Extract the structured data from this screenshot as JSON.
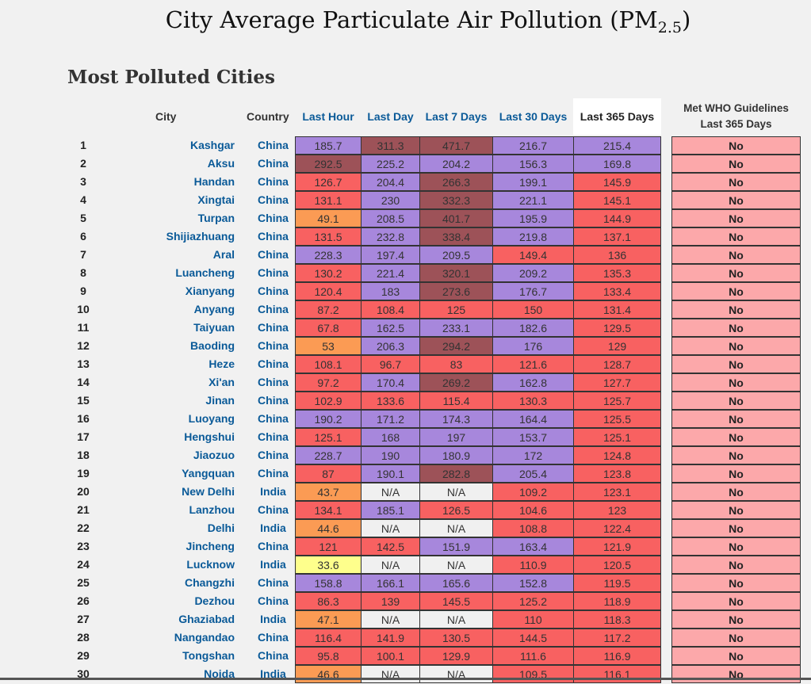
{
  "page": {
    "title": "City Average Particulate Air Pollution (PM",
    "title_sub": "2.5",
    "title_end": ")",
    "section_title": "Most Polluted Cities"
  },
  "headers": {
    "city": "City",
    "country": "Country",
    "last_hour": "Last Hour",
    "last_day": "Last Day",
    "last_7_days": "Last 7 Days",
    "last_30_days": "Last 30 Days",
    "last_365_days": "Last 365 Days",
    "who_line1": "Met WHO Guidelines",
    "who_line2": "Last 365 Days"
  },
  "colors": {
    "orange": "#fb9b54",
    "yellow": "#feff8c",
    "red": "#f86161",
    "purple": "#a787dc",
    "maroon": "#9d5258",
    "na": "#f0f0f0",
    "who_no": "#fca8aa",
    "link": "#0a5a98"
  },
  "rows": [
    {
      "rank": "1",
      "city": "Kashgar",
      "country": "China",
      "values": [
        "185.7",
        "311.3",
        "471.7",
        "216.7",
        "215.4"
      ],
      "met": "No"
    },
    {
      "rank": "2",
      "city": "Aksu",
      "country": "China",
      "values": [
        "292.5",
        "225.2",
        "204.2",
        "156.3",
        "169.8"
      ],
      "met": "No"
    },
    {
      "rank": "3",
      "city": "Handan",
      "country": "China",
      "values": [
        "126.7",
        "204.4",
        "266.3",
        "199.1",
        "145.9"
      ],
      "met": "No"
    },
    {
      "rank": "4",
      "city": "Xingtai",
      "country": "China",
      "values": [
        "131.1",
        "230",
        "332.3",
        "221.1",
        "145.1"
      ],
      "met": "No"
    },
    {
      "rank": "5",
      "city": "Turpan",
      "country": "China",
      "values": [
        "49.1",
        "208.5",
        "401.7",
        "195.9",
        "144.9"
      ],
      "met": "No"
    },
    {
      "rank": "6",
      "city": "Shijiazhuang",
      "country": "China",
      "values": [
        "131.5",
        "232.8",
        "338.4",
        "219.8",
        "137.1"
      ],
      "met": "No"
    },
    {
      "rank": "7",
      "city": "Aral",
      "country": "China",
      "values": [
        "228.3",
        "197.4",
        "209.5",
        "149.4",
        "136"
      ],
      "met": "No"
    },
    {
      "rank": "8",
      "city": "Luancheng",
      "country": "China",
      "values": [
        "130.2",
        "221.4",
        "320.1",
        "209.2",
        "135.3"
      ],
      "met": "No"
    },
    {
      "rank": "9",
      "city": "Xianyang",
      "country": "China",
      "values": [
        "120.4",
        "183",
        "273.6",
        "176.7",
        "133.4"
      ],
      "met": "No"
    },
    {
      "rank": "10",
      "city": "Anyang",
      "country": "China",
      "values": [
        "87.2",
        "108.4",
        "125",
        "150",
        "131.4"
      ],
      "met": "No"
    },
    {
      "rank": "11",
      "city": "Taiyuan",
      "country": "China",
      "values": [
        "67.8",
        "162.5",
        "233.1",
        "182.6",
        "129.5"
      ],
      "met": "No"
    },
    {
      "rank": "12",
      "city": "Baoding",
      "country": "China",
      "values": [
        "53",
        "206.3",
        "294.2",
        "176",
        "129"
      ],
      "met": "No"
    },
    {
      "rank": "13",
      "city": "Heze",
      "country": "China",
      "values": [
        "108.1",
        "96.7",
        "83",
        "121.6",
        "128.7"
      ],
      "met": "No"
    },
    {
      "rank": "14",
      "city": "Xi'an",
      "country": "China",
      "values": [
        "97.2",
        "170.4",
        "269.2",
        "162.8",
        "127.7"
      ],
      "met": "No"
    },
    {
      "rank": "15",
      "city": "Jinan",
      "country": "China",
      "values": [
        "102.9",
        "133.6",
        "115.4",
        "130.3",
        "125.7"
      ],
      "met": "No"
    },
    {
      "rank": "16",
      "city": "Luoyang",
      "country": "China",
      "values": [
        "190.2",
        "171.2",
        "174.3",
        "164.4",
        "125.5"
      ],
      "met": "No"
    },
    {
      "rank": "17",
      "city": "Hengshui",
      "country": "China",
      "values": [
        "125.1",
        "168",
        "197",
        "153.7",
        "125.1"
      ],
      "met": "No"
    },
    {
      "rank": "18",
      "city": "Jiaozuo",
      "country": "China",
      "values": [
        "228.7",
        "190",
        "180.9",
        "172",
        "124.8"
      ],
      "met": "No"
    },
    {
      "rank": "19",
      "city": "Yangquan",
      "country": "China",
      "values": [
        "87",
        "190.1",
        "282.8",
        "205.4",
        "123.8"
      ],
      "met": "No"
    },
    {
      "rank": "20",
      "city": "New Delhi",
      "country": "India",
      "values": [
        "43.7",
        "N/A",
        "N/A",
        "109.2",
        "123.1"
      ],
      "met": "No"
    },
    {
      "rank": "21",
      "city": "Lanzhou",
      "country": "China",
      "values": [
        "134.1",
        "185.1",
        "126.5",
        "104.6",
        "123"
      ],
      "met": "No"
    },
    {
      "rank": "22",
      "city": "Delhi",
      "country": "India",
      "values": [
        "44.6",
        "N/A",
        "N/A",
        "108.8",
        "122.4"
      ],
      "met": "No"
    },
    {
      "rank": "23",
      "city": "Jincheng",
      "country": "China",
      "values": [
        "121",
        "142.5",
        "151.9",
        "163.4",
        "121.9"
      ],
      "met": "No"
    },
    {
      "rank": "24",
      "city": "Lucknow",
      "country": "India",
      "values": [
        "33.6",
        "N/A",
        "N/A",
        "110.9",
        "120.5"
      ],
      "met": "No"
    },
    {
      "rank": "25",
      "city": "Changzhi",
      "country": "China",
      "values": [
        "158.8",
        "166.1",
        "165.6",
        "152.8",
        "119.5"
      ],
      "met": "No"
    },
    {
      "rank": "26",
      "city": "Dezhou",
      "country": "China",
      "values": [
        "86.3",
        "139",
        "145.5",
        "125.2",
        "118.9"
      ],
      "met": "No"
    },
    {
      "rank": "27",
      "city": "Ghaziabad",
      "country": "India",
      "values": [
        "47.1",
        "N/A",
        "N/A",
        "110",
        "118.3"
      ],
      "met": "No"
    },
    {
      "rank": "28",
      "city": "Nangandao",
      "country": "China",
      "values": [
        "116.4",
        "141.9",
        "130.5",
        "144.5",
        "117.2"
      ],
      "met": "No"
    },
    {
      "rank": "29",
      "city": "Tongshan",
      "country": "China",
      "values": [
        "95.8",
        "100.1",
        "129.9",
        "111.6",
        "116.9"
      ],
      "met": "No"
    },
    {
      "rank": "30",
      "city": "Noida",
      "country": "India",
      "values": [
        "46.6",
        "N/A",
        "N/A",
        "109.5",
        "116.1"
      ],
      "met": "No"
    }
  ]
}
